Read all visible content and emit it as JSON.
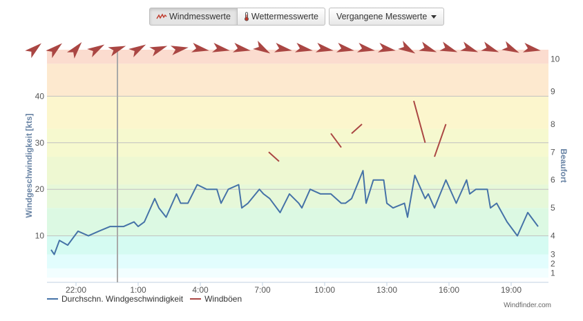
{
  "toolbar": {
    "wind_label": "Windmesswerte",
    "weather_label": "Wettermesswerte",
    "past_label": "Vergangene Messwerte"
  },
  "chart_data": {
    "type": "line",
    "ylabel": "Windgeschwindigkeit [kts]",
    "y2label": "Beaufort",
    "ylim": [
      0,
      50
    ],
    "y_ticks": [
      10,
      20,
      30,
      40
    ],
    "beaufort_ticks": [
      {
        "label": "1",
        "kts": 2
      },
      {
        "label": "2",
        "kts": 4
      },
      {
        "label": "3",
        "kts": 6
      },
      {
        "label": "4",
        "kts": 10
      },
      {
        "label": "5",
        "kts": 16
      },
      {
        "label": "6",
        "kts": 22
      },
      {
        "label": "7",
        "kts": 28
      },
      {
        "label": "8",
        "kts": 34
      },
      {
        "label": "9",
        "kts": 41
      },
      {
        "label": "10",
        "kts": 48
      }
    ],
    "xlim": [
      -3.4,
      20.8
    ],
    "x_ticks": [
      {
        "label": "22:00",
        "x": -2
      },
      {
        "label": "1:00",
        "x": 1
      },
      {
        "label": "4:00",
        "x": 4
      },
      {
        "label": "7:00",
        "x": 7
      },
      {
        "label": "10:00",
        "x": 10
      },
      {
        "label": "13:00",
        "x": 13
      },
      {
        "label": "16:00",
        "x": 16
      },
      {
        "label": "19:00",
        "x": 19
      }
    ],
    "now_marker_x": 0,
    "beaufort_bands": [
      {
        "from": 0,
        "to": 1,
        "color": "#ffffff"
      },
      {
        "from": 1,
        "to": 3,
        "color": "#f2feff"
      },
      {
        "from": 3,
        "to": 6,
        "color": "#e2fdfd"
      },
      {
        "from": 6,
        "to": 10,
        "color": "#d5fbf2"
      },
      {
        "from": 10,
        "to": 16,
        "color": "#dcf9e3"
      },
      {
        "from": 16,
        "to": 21,
        "color": "#e6f8d9"
      },
      {
        "from": 21,
        "to": 27,
        "color": "#eef8d2"
      },
      {
        "from": 27,
        "to": 33,
        "color": "#f6f9cf"
      },
      {
        "from": 33,
        "to": 40,
        "color": "#fcf6cd"
      },
      {
        "from": 40,
        "to": 47,
        "color": "#fde9cf"
      },
      {
        "from": 47,
        "to": 50,
        "color": "#fbdccf"
      }
    ],
    "series": [
      {
        "name": "Durchschn. Windgeschwindigkeit",
        "color": "#4572a7",
        "points": [
          [
            -3.2,
            7
          ],
          [
            -3.05,
            6
          ],
          [
            -2.8,
            9
          ],
          [
            -2.4,
            8
          ],
          [
            -1.9,
            11
          ],
          [
            -1.4,
            10
          ],
          [
            -0.9,
            11
          ],
          [
            -0.35,
            12
          ],
          [
            0.3,
            12
          ],
          [
            0.8,
            13
          ],
          [
            1.0,
            12
          ],
          [
            1.3,
            13
          ],
          [
            1.8,
            18
          ],
          [
            2.0,
            16
          ],
          [
            2.35,
            14
          ],
          [
            2.85,
            19
          ],
          [
            3.05,
            17
          ],
          [
            3.4,
            17
          ],
          [
            3.85,
            21
          ],
          [
            4.3,
            20
          ],
          [
            4.8,
            20
          ],
          [
            5.0,
            17
          ],
          [
            5.35,
            20
          ],
          [
            5.85,
            21
          ],
          [
            6.0,
            16
          ],
          [
            6.3,
            17
          ],
          [
            6.85,
            20
          ],
          [
            7.05,
            19
          ],
          [
            7.35,
            18
          ],
          [
            7.85,
            15
          ],
          [
            8.3,
            19
          ],
          [
            8.75,
            17
          ],
          [
            8.9,
            16
          ],
          [
            9.3,
            20
          ],
          [
            9.8,
            19
          ],
          [
            10.3,
            19
          ],
          [
            10.8,
            17
          ],
          [
            11.0,
            17
          ],
          [
            11.3,
            18
          ],
          [
            11.85,
            24
          ],
          [
            12.0,
            17
          ],
          [
            12.35,
            22
          ],
          [
            12.85,
            22
          ],
          [
            13.0,
            17
          ],
          [
            13.3,
            16
          ],
          [
            13.85,
            17
          ],
          [
            14.0,
            14
          ],
          [
            14.35,
            23
          ],
          [
            14.85,
            18
          ],
          [
            15.0,
            19
          ],
          [
            15.3,
            16
          ],
          [
            15.85,
            22
          ],
          [
            16.35,
            17
          ],
          [
            16.85,
            22
          ],
          [
            17.0,
            19
          ],
          [
            17.3,
            20
          ],
          [
            17.85,
            20
          ],
          [
            18.0,
            16
          ],
          [
            18.3,
            17
          ],
          [
            18.8,
            13
          ],
          [
            19.3,
            10
          ],
          [
            19.8,
            15
          ],
          [
            20.3,
            12
          ]
        ]
      },
      {
        "name": "Windböen",
        "color": "#aa4643",
        "segments": [
          [
            [
              7.3,
              28
            ],
            [
              7.8,
              26
            ]
          ],
          [
            [
              10.3,
              32
            ],
            [
              10.8,
              29
            ]
          ],
          [
            [
              11.3,
              32
            ],
            [
              11.8,
              34
            ]
          ],
          [
            [
              14.3,
              39
            ],
            [
              14.85,
              30
            ]
          ],
          [
            [
              15.3,
              27
            ],
            [
              15.85,
              34
            ]
          ]
        ]
      }
    ],
    "wind_directions": {
      "color": "#aa4643",
      "times": [
        -4.0,
        -3.0,
        -2.0,
        -1.0,
        0.0,
        1.0,
        2.0,
        3.0,
        4.0,
        5.0,
        6.0,
        7.0,
        8.0,
        9.0,
        10.0,
        11.0,
        12.0,
        13.0,
        14.0,
        15.0,
        16.0,
        17.0,
        18.0,
        19.0,
        20.0
      ],
      "degrees": [
        230,
        230,
        220,
        240,
        250,
        240,
        250,
        260,
        280,
        280,
        280,
        300,
        280,
        280,
        280,
        280,
        280,
        280,
        300,
        290,
        290,
        290,
        290,
        295,
        280
      ]
    }
  },
  "legend": {
    "avg_label": "Durchschn. Windgeschwindigkeit",
    "gust_label": "Windböen"
  },
  "credit": "Windfinder.com"
}
